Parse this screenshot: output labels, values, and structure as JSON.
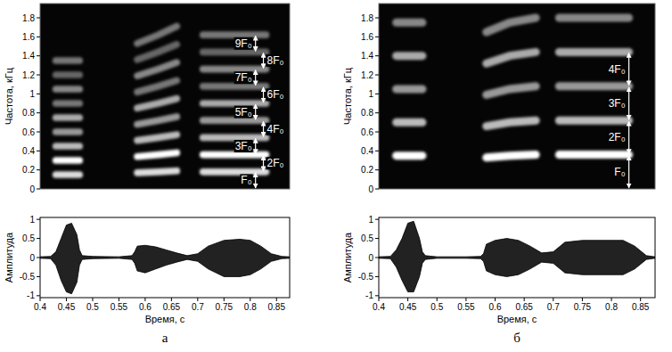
{
  "chart_data": [
    {
      "type": "spectrogram",
      "y_label": "Частота, кГц",
      "tick_labels": "y",
      "xlim": [
        0.4,
        0.875
      ],
      "ylim": [
        0,
        1.95
      ],
      "yticks": [
        0,
        0.2,
        0.4,
        0.6,
        0.8,
        1,
        1.2,
        1.4,
        1.6,
        1.8
      ],
      "x": [
        0.43,
        0.475,
        0.48,
        0.585,
        0.625,
        0.66,
        0.67,
        0.71,
        0.77,
        0.83
      ],
      "series": [
        {
          "color": "#dddddd",
          "values": [
            0.15,
            0.15,
            null,
            0.17,
            0.18,
            0.19,
            null,
            0.18,
            0.18,
            0.18
          ]
        },
        {
          "color": "#ffffff",
          "values": [
            0.3,
            0.3,
            null,
            0.34,
            0.36,
            0.38,
            null,
            0.36,
            0.36,
            0.36
          ]
        },
        {
          "color": "#bbbbbb",
          "values": [
            0.45,
            0.45,
            null,
            0.51,
            0.54,
            0.57,
            null,
            0.54,
            0.54,
            0.54
          ]
        },
        {
          "color": "#999999",
          "values": [
            0.6,
            0.6,
            null,
            0.68,
            0.72,
            0.76,
            null,
            0.72,
            0.72,
            0.72
          ]
        },
        {
          "color": "#aaaaaa",
          "values": [
            0.75,
            0.75,
            null,
            0.85,
            0.9,
            0.95,
            null,
            0.9,
            0.9,
            0.9
          ]
        },
        {
          "color": "#777777",
          "values": [
            0.9,
            0.9,
            null,
            1.02,
            1.08,
            1.14,
            null,
            1.08,
            1.08,
            1.08
          ]
        },
        {
          "color": "#888888",
          "values": [
            1.05,
            1.05,
            null,
            1.19,
            1.26,
            1.33,
            null,
            1.26,
            1.26,
            1.26
          ]
        },
        {
          "color": "#666666",
          "values": [
            1.2,
            1.2,
            null,
            1.36,
            1.44,
            1.52,
            null,
            1.44,
            1.44,
            1.44
          ]
        },
        {
          "color": "#777777",
          "values": [
            1.35,
            1.35,
            null,
            1.53,
            1.62,
            1.71,
            null,
            1.62,
            1.62,
            1.62
          ]
        }
      ],
      "annotations": [
        {
          "text": "F₀",
          "x": 0.81,
          "y0": 0,
          "y1": 0.18
        },
        {
          "text": "2F₀",
          "x": 0.825,
          "y0": 0.18,
          "y1": 0.36
        },
        {
          "text": "3F₀",
          "x": 0.81,
          "y0": 0.36,
          "y1": 0.54
        },
        {
          "text": "4F₀",
          "x": 0.825,
          "y0": 0.54,
          "y1": 0.72
        },
        {
          "text": "5F₀",
          "x": 0.81,
          "y0": 0.72,
          "y1": 0.9
        },
        {
          "text": "6F₀",
          "x": 0.825,
          "y0": 0.9,
          "y1": 1.08
        },
        {
          "text": "7F₀",
          "x": 0.81,
          "y0": 1.08,
          "y1": 1.26
        },
        {
          "text": "8F₀",
          "x": 0.825,
          "y0": 1.26,
          "y1": 1.44
        },
        {
          "text": "9F₀",
          "x": 0.81,
          "y0": 1.44,
          "y1": 1.62
        }
      ]
    },
    {
      "type": "area",
      "x_label": "Время, с",
      "y_label": "Амплитуда",
      "subtitle": "а",
      "xlim": [
        0.4,
        0.875
      ],
      "ylim": [
        -1.05,
        1.05
      ],
      "xticks": [
        0.4,
        0.45,
        0.5,
        0.55,
        0.6,
        0.65,
        0.7,
        0.75,
        0.8,
        0.85
      ],
      "yticks": [
        -1,
        -0.5,
        0,
        0.5,
        1
      ],
      "x": [
        0.4,
        0.42,
        0.43,
        0.44,
        0.45,
        0.46,
        0.47,
        0.475,
        0.48,
        0.5,
        0.55,
        0.575,
        0.58,
        0.585,
        0.6,
        0.62,
        0.64,
        0.66,
        0.68,
        0.7,
        0.72,
        0.75,
        0.78,
        0.8,
        0.82,
        0.84,
        0.86,
        0.875
      ],
      "series": [
        {
          "color": "#222222",
          "values": [
            0.02,
            0.03,
            0.15,
            0.5,
            0.85,
            0.9,
            0.6,
            0.2,
            0.05,
            0.03,
            0.02,
            0.05,
            0.15,
            0.3,
            0.32,
            0.28,
            0.2,
            0.12,
            0.05,
            0.1,
            0.3,
            0.45,
            0.48,
            0.45,
            0.3,
            0.1,
            0.03,
            0.02
          ]
        },
        {
          "color": "#000000",
          "values": [
            -0.02,
            -0.03,
            -0.2,
            -0.6,
            -0.9,
            -0.95,
            -0.65,
            -0.2,
            -0.05,
            -0.03,
            -0.02,
            -0.05,
            -0.15,
            -0.35,
            -0.4,
            -0.3,
            -0.2,
            -0.12,
            -0.05,
            -0.1,
            -0.3,
            -0.5,
            -0.5,
            -0.45,
            -0.3,
            -0.1,
            -0.03,
            -0.02
          ]
        }
      ]
    },
    {
      "type": "spectrogram",
      "y_label": "Частота, кГц",
      "tick_labels": "y",
      "xlim": [
        0.4,
        0.875
      ],
      "ylim": [
        0,
        1.95
      ],
      "yticks": [
        0,
        0.2,
        0.4,
        0.6,
        0.8,
        1,
        1.2,
        1.4,
        1.6,
        1.8
      ],
      "x": [
        0.43,
        0.475,
        0.48,
        0.585,
        0.625,
        0.67,
        0.68,
        0.71,
        0.77,
        0.83
      ],
      "series": [
        {
          "color": "#ffffff",
          "values": [
            0.35,
            0.35,
            null,
            0.33,
            0.35,
            0.36,
            null,
            0.36,
            0.36,
            0.36
          ]
        },
        {
          "color": "#bbbbbb",
          "values": [
            0.7,
            0.7,
            null,
            0.66,
            0.7,
            0.72,
            null,
            0.72,
            0.72,
            0.72
          ]
        },
        {
          "color": "#999999",
          "values": [
            1.05,
            1.05,
            null,
            0.99,
            1.05,
            1.08,
            null,
            1.08,
            1.08,
            1.08
          ]
        },
        {
          "color": "#aaaaaa",
          "values": [
            1.4,
            1.4,
            null,
            1.32,
            1.4,
            1.44,
            null,
            1.44,
            1.44,
            1.44
          ]
        },
        {
          "color": "#888888",
          "values": [
            1.75,
            1.75,
            null,
            1.65,
            1.75,
            1.8,
            null,
            1.8,
            1.8,
            1.8
          ]
        }
      ],
      "annotations": [
        {
          "text": "F₀",
          "x": 0.83,
          "y0": 0,
          "y1": 0.36
        },
        {
          "text": "2F₀",
          "x": 0.83,
          "y0": 0.36,
          "y1": 0.72
        },
        {
          "text": "3F₀",
          "x": 0.83,
          "y0": 0.72,
          "y1": 1.08
        },
        {
          "text": "4F₀",
          "x": 0.83,
          "y0": 1.08,
          "y1": 1.44
        }
      ]
    },
    {
      "type": "area",
      "x_label": "Время, с",
      "y_label": "Амплитуда",
      "subtitle": "б",
      "xlim": [
        0.4,
        0.875
      ],
      "ylim": [
        -1.05,
        1.05
      ],
      "xticks": [
        0.4,
        0.45,
        0.5,
        0.55,
        0.6,
        0.65,
        0.7,
        0.75,
        0.8,
        0.85
      ],
      "yticks": [
        -1,
        -0.5,
        0,
        0.5,
        1
      ],
      "x": [
        0.4,
        0.42,
        0.43,
        0.44,
        0.45,
        0.46,
        0.47,
        0.475,
        0.48,
        0.5,
        0.55,
        0.575,
        0.58,
        0.585,
        0.6,
        0.62,
        0.64,
        0.66,
        0.68,
        0.7,
        0.72,
        0.75,
        0.78,
        0.8,
        0.82,
        0.84,
        0.86,
        0.875
      ],
      "series": [
        {
          "color": "#222222",
          "values": [
            0.02,
            0.03,
            0.2,
            0.5,
            0.9,
            0.95,
            0.5,
            0.15,
            0.05,
            0.02,
            0.02,
            0.03,
            0.1,
            0.35,
            0.45,
            0.5,
            0.45,
            0.3,
            0.12,
            0.15,
            0.4,
            0.45,
            0.45,
            0.45,
            0.45,
            0.3,
            0.05,
            0.02
          ]
        },
        {
          "color": "#000000",
          "values": [
            -0.02,
            -0.03,
            -0.25,
            -0.6,
            -0.9,
            -0.9,
            -0.5,
            -0.15,
            -0.05,
            -0.02,
            -0.02,
            -0.03,
            -0.1,
            -0.35,
            -0.45,
            -0.5,
            -0.45,
            -0.3,
            -0.12,
            -0.15,
            -0.4,
            -0.45,
            -0.45,
            -0.45,
            -0.45,
            -0.3,
            -0.05,
            -0.02
          ]
        }
      ]
    }
  ]
}
